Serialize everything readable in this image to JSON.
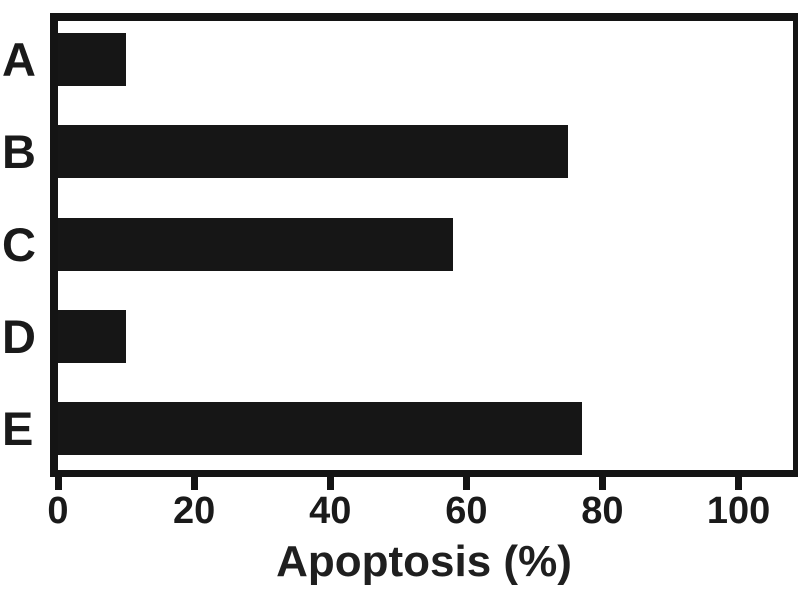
{
  "chart_data": {
    "type": "bar",
    "orientation": "horizontal",
    "title": "",
    "xlabel": "Apoptosis (%)",
    "ylabel": "",
    "categories": [
      "A",
      "B",
      "C",
      "D",
      "E"
    ],
    "values": [
      10,
      75,
      58,
      10,
      77
    ],
    "xlim": [
      0,
      108
    ],
    "xticks": [
      0,
      20,
      40,
      60,
      80,
      100
    ],
    "bar_color": "#161616",
    "axis_color": "#141414",
    "text_color": "#1a1a1a",
    "background_color": "#ffffff",
    "grid": false,
    "legend": false
  }
}
